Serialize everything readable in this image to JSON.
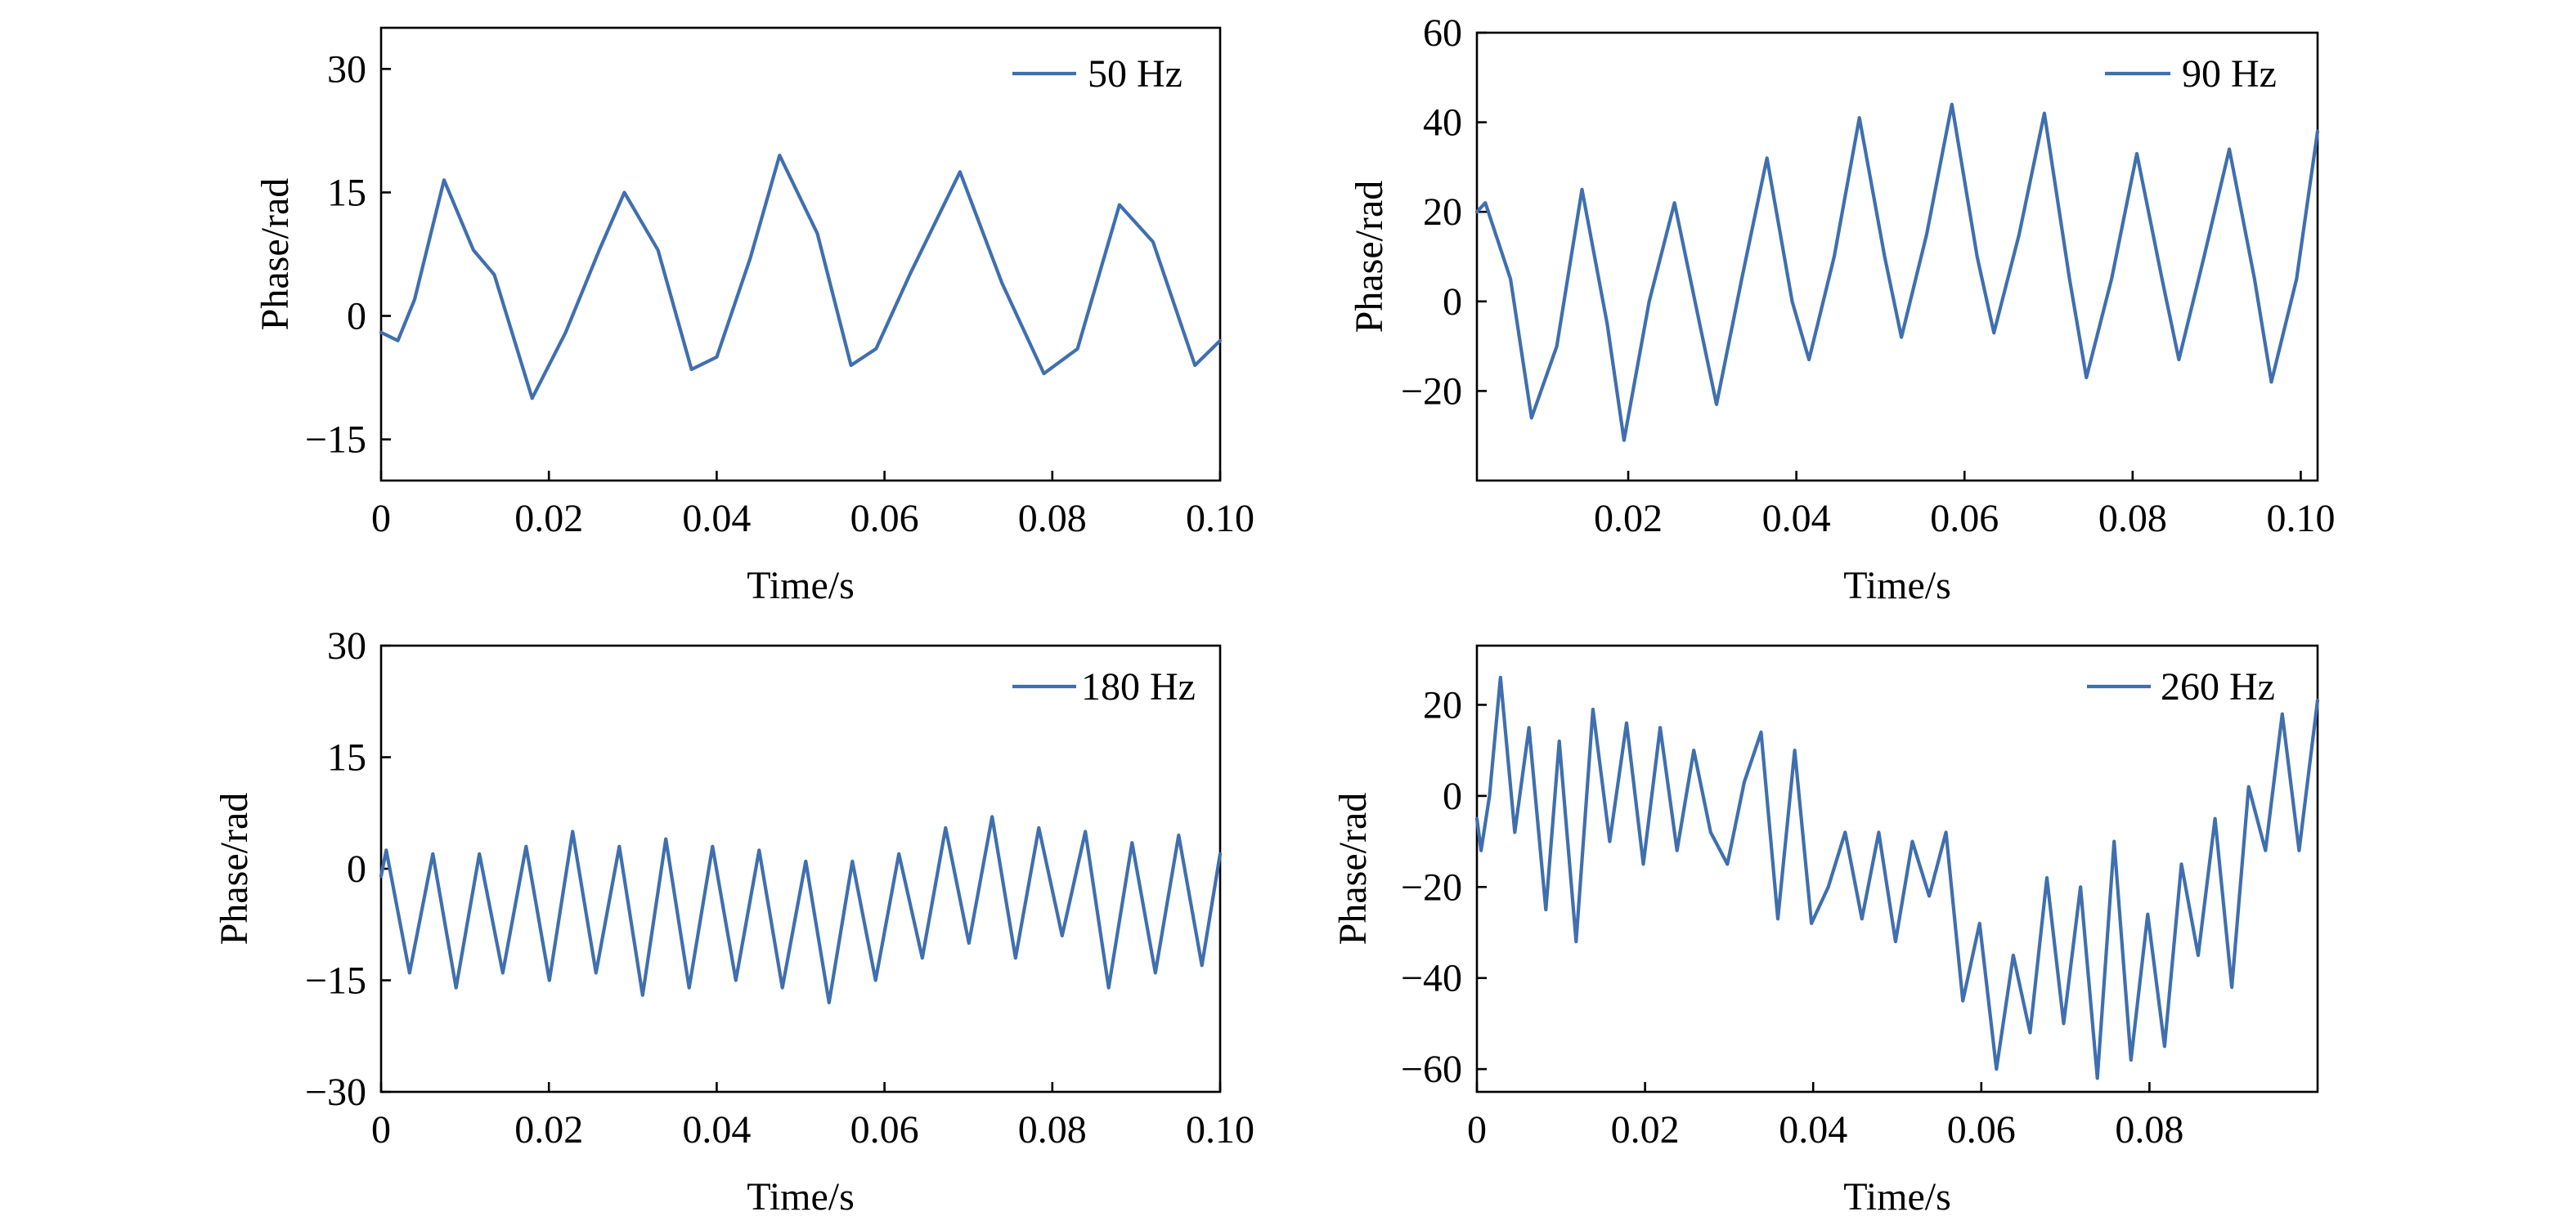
{
  "colors": {
    "series": "#3f6fae",
    "axis": "#000000",
    "background": "#ffffff"
  },
  "chart_data": [
    {
      "type": "line",
      "id": "panel-50hz",
      "xlabel": "Time/s",
      "ylabel": "Phase/rad",
      "xlim": [
        0,
        0.1
      ],
      "ylim": [
        -20,
        35
      ],
      "xticks": [
        0,
        0.02,
        0.04,
        0.06,
        0.08,
        0.1
      ],
      "xtick_labels": [
        "0",
        "0.02",
        "0.04",
        "0.06",
        "0.08",
        "0.10"
      ],
      "yticks": [
        -15,
        0,
        15,
        30
      ],
      "ytick_labels": [
        "−15",
        "0",
        "15",
        "30"
      ],
      "grid": false,
      "legend_position": "top-right",
      "series": [
        {
          "name": "50 Hz",
          "x": [
            0,
            0.002,
            0.004,
            0.0075,
            0.011,
            0.0135,
            0.018,
            0.022,
            0.026,
            0.029,
            0.033,
            0.037,
            0.04,
            0.044,
            0.0475,
            0.052,
            0.056,
            0.059,
            0.063,
            0.069,
            0.074,
            0.079,
            0.083,
            0.088,
            0.092,
            0.097,
            0.1
          ],
          "values": [
            -2,
            -3,
            2,
            16.5,
            8,
            5,
            -10,
            -2,
            8,
            15,
            8,
            -6.5,
            -5,
            7,
            19.5,
            10,
            -6,
            -4,
            5,
            17.5,
            4,
            -7,
            -4,
            13.5,
            9,
            -6,
            -3
          ]
        }
      ]
    },
    {
      "type": "line",
      "id": "panel-90hz",
      "xlabel": "Time/s",
      "ylabel": "Phase/rad",
      "xlim": [
        0.002,
        0.102
      ],
      "ylim": [
        -40,
        60
      ],
      "xticks": [
        0.02,
        0.04,
        0.06,
        0.08,
        0.1
      ],
      "xtick_labels": [
        "0.02",
        "0.04",
        "0.06",
        "0.08",
        "0.10"
      ],
      "yticks": [
        -20,
        0,
        20,
        40,
        60
      ],
      "ytick_labels": [
        "−20",
        "0",
        "20",
        "40",
        "60"
      ],
      "grid": false,
      "legend_position": "top-right",
      "series": [
        {
          "name": "90 Hz",
          "x": [
            0.002,
            0.003,
            0.006,
            0.0085,
            0.0115,
            0.0145,
            0.0175,
            0.0195,
            0.0225,
            0.0255,
            0.0285,
            0.0305,
            0.0335,
            0.0365,
            0.0395,
            0.0415,
            0.0445,
            0.0475,
            0.0505,
            0.0525,
            0.0555,
            0.0585,
            0.0615,
            0.0635,
            0.0665,
            0.0695,
            0.0725,
            0.0745,
            0.0775,
            0.0805,
            0.0835,
            0.0855,
            0.0885,
            0.0915,
            0.0945,
            0.0965,
            0.0995,
            0.102
          ],
          "values": [
            20,
            22,
            5,
            -26,
            -10,
            25,
            -5,
            -31,
            0,
            22,
            -5,
            -23,
            5,
            32,
            0,
            -13,
            10,
            41,
            10,
            -8,
            15,
            44,
            10,
            -7,
            15,
            42,
            5,
            -17,
            5,
            33,
            5,
            -13,
            10,
            34,
            5,
            -18,
            5,
            38
          ]
        }
      ]
    },
    {
      "type": "line",
      "id": "panel-180hz",
      "xlabel": "Time/s",
      "ylabel": "Phase/rad",
      "xlim": [
        0,
        0.1
      ],
      "ylim": [
        -30,
        30
      ],
      "xticks": [
        0,
        0.02,
        0.04,
        0.06,
        0.08,
        0.1
      ],
      "xtick_labels": [
        "0",
        "0.02",
        "0.04",
        "0.06",
        "0.08",
        "0.10"
      ],
      "yticks": [
        -30,
        -15,
        0,
        15,
        30
      ],
      "ytick_labels": [
        "−30",
        "−15",
        "0",
        "15",
        "30"
      ],
      "grid": false,
      "legend_position": "top-right",
      "series": [
        {
          "name": "180 Hz",
          "x": [
            0,
            0.00061,
            0.00339,
            0.00617,
            0.00894,
            0.01172,
            0.0145,
            0.01728,
            0.02006,
            0.02283,
            0.02561,
            0.02839,
            0.03117,
            0.03394,
            0.03672,
            0.0395,
            0.04228,
            0.04506,
            0.04783,
            0.05061,
            0.05339,
            0.05617,
            0.05894,
            0.06172,
            0.0645,
            0.06728,
            0.07006,
            0.07283,
            0.07561,
            0.07839,
            0.08117,
            0.08394,
            0.08672,
            0.0895,
            0.09228,
            0.09506,
            0.09783,
            0.1
          ],
          "values": [
            -1,
            2.5,
            -14,
            2,
            -16,
            2,
            -14,
            3,
            -15,
            5,
            -14,
            3,
            -17,
            4,
            -16,
            3,
            -15,
            2.5,
            -16,
            1,
            -18,
            1,
            -15,
            2,
            -12,
            5.5,
            -10,
            7,
            -12,
            5.5,
            -9,
            5,
            -16,
            3.5,
            -14,
            4.5,
            -13,
            2
          ]
        }
      ]
    },
    {
      "type": "line",
      "id": "panel-260hz",
      "xlabel": "Time/s",
      "ylabel": "Phase/rad",
      "xlim": [
        0,
        0.1
      ],
      "ylim": [
        -65,
        33
      ],
      "xticks": [
        0,
        0.02,
        0.04,
        0.06,
        0.08
      ],
      "xtick_labels": [
        "0",
        "0.02",
        "0.04",
        "0.06",
        "0.08"
      ],
      "yticks": [
        -60,
        -40,
        -20,
        0,
        20
      ],
      "ytick_labels": [
        "−60",
        "−40",
        "−20",
        "0",
        "20"
      ],
      "grid": false,
      "legend_position": "top-right",
      "series": [
        {
          "name": "260 Hz",
          "x": [
            0,
            0.0005,
            0.0015,
            0.0028,
            0.0045,
            0.0062,
            0.0082,
            0.0098,
            0.0118,
            0.0138,
            0.0158,
            0.0178,
            0.0198,
            0.0218,
            0.0238,
            0.0258,
            0.0278,
            0.0298,
            0.0318,
            0.0338,
            0.0358,
            0.0378,
            0.0398,
            0.0418,
            0.0438,
            0.0458,
            0.0478,
            0.0498,
            0.0518,
            0.0538,
            0.0558,
            0.0578,
            0.0598,
            0.0618,
            0.0638,
            0.0658,
            0.0678,
            0.0698,
            0.0718,
            0.0738,
            0.0758,
            0.0778,
            0.0798,
            0.0818,
            0.0838,
            0.0858,
            0.0878,
            0.0898,
            0.0918,
            0.0938,
            0.0958,
            0.0978,
            0.1
          ],
          "values": [
            -5,
            -12,
            0,
            26,
            -8,
            15,
            -25,
            12,
            -32,
            19,
            -10,
            16,
            -15,
            15,
            -12,
            10,
            -8,
            -15,
            3,
            14,
            -27,
            10,
            -28,
            -20,
            -8,
            -27,
            -8,
            -32,
            -10,
            -22,
            -8,
            -45,
            -28,
            -60,
            -35,
            -52,
            -18,
            -50,
            -20,
            -62,
            -10,
            -58,
            -26,
            -55,
            -15,
            -35,
            -5,
            -42,
            2,
            -12,
            18,
            -12,
            21
          ]
        }
      ]
    }
  ]
}
